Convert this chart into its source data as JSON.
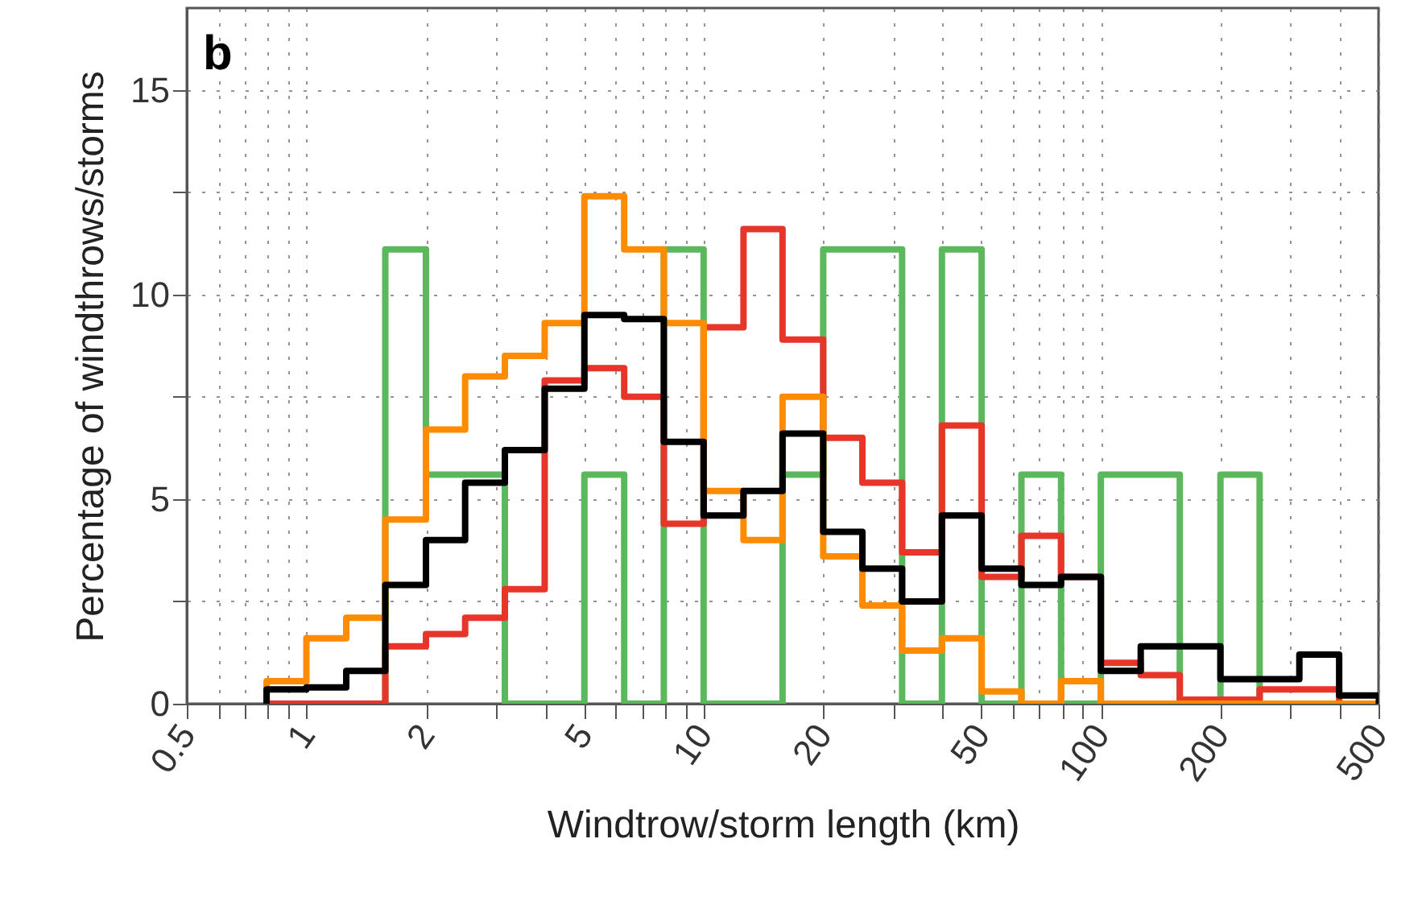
{
  "chart_data": {
    "type": "histogram",
    "title": "b",
    "xlabel": "Windtrow/storm length (km)",
    "ylabel": "Percentage of windthrows/storms",
    "log": "x",
    "grid": true,
    "line_style": "solid",
    "xlim": [
      0.5,
      500
    ],
    "xticks": [
      0.5,
      {
        "value": 0.6,
        "label": null
      },
      {
        "value": 0.7,
        "label": null
      },
      {
        "value": 0.8,
        "label": null
      },
      {
        "value": 0.9,
        "label": null
      },
      1,
      2,
      {
        "value": 3,
        "label": null
      },
      {
        "value": 4,
        "label": null
      },
      5,
      {
        "value": 6,
        "label": null
      },
      {
        "value": 7,
        "label": null
      },
      {
        "value": 8,
        "label": null
      },
      {
        "value": 9,
        "label": null
      },
      10,
      20,
      {
        "value": 30,
        "label": null
      },
      {
        "value": 40,
        "label": null
      },
      50,
      {
        "value": 60,
        "label": null
      },
      {
        "value": 70,
        "label": null
      },
      {
        "value": 80,
        "label": null
      },
      {
        "value": 90,
        "label": null
      },
      100,
      200,
      {
        "value": 300,
        "label": null
      },
      {
        "value": 400,
        "label": null
      },
      500
    ],
    "ylim": [
      0,
      17
    ],
    "yticks": [
      0,
      {
        "value": 2.5,
        "label": null
      },
      5,
      {
        "value": 7.5,
        "label": null
      },
      10,
      {
        "value": 12.5,
        "label": null
      },
      15
    ],
    "bins": [
      0.794,
      1,
      1.26,
      1.58,
      2,
      2.51,
      3.16,
      3.98,
      5.01,
      6.31,
      7.94,
      10,
      12.6,
      15.8,
      20,
      25.1,
      31.6,
      39.8,
      50.1,
      63.1,
      79.4,
      100,
      126,
      158,
      200,
      251,
      316,
      398,
      501
    ],
    "series": [
      {
        "color": "#5cb85c",
        "values": [
          0,
          0,
          0,
          11.1,
          5.6,
          5.6,
          0,
          0,
          5.6,
          0,
          11.1,
          0,
          0,
          5.6,
          11.1,
          11.1,
          0,
          11.1,
          0,
          5.6,
          0,
          5.6,
          5.6,
          0,
          5.6,
          0,
          0,
          0
        ]
      },
      {
        "color": "#e8352a",
        "values": [
          0,
          0,
          0,
          1.4,
          1.7,
          2.1,
          2.8,
          7.9,
          8.2,
          7.5,
          4.4,
          9.2,
          11.6,
          8.9,
          6.5,
          5.4,
          3.7,
          6.8,
          3.1,
          4.1,
          3.1,
          1,
          0.7,
          0.1,
          0.1,
          0.35,
          0.35,
          0
        ]
      },
      {
        "color": "#ff8c00",
        "values": [
          0.55,
          1.6,
          2.1,
          4.5,
          6.7,
          8,
          8.5,
          9.3,
          12.4,
          11.1,
          9.3,
          5.2,
          4,
          7.5,
          3.6,
          2.4,
          1.3,
          1.6,
          0.3,
          0,
          0.55,
          0,
          0,
          0,
          0,
          0,
          0,
          0
        ]
      },
      {
        "color": "#000000",
        "values": [
          0.35,
          0.4,
          0.8,
          2.9,
          4,
          5.4,
          6.2,
          7.7,
          9.5,
          9.4,
          6.4,
          4.6,
          5.2,
          6.6,
          4.2,
          3.3,
          2.5,
          4.6,
          3.3,
          2.9,
          3.1,
          0.8,
          1.4,
          1.4,
          0.6,
          0.6,
          1.2,
          0.2
        ]
      }
    ]
  }
}
